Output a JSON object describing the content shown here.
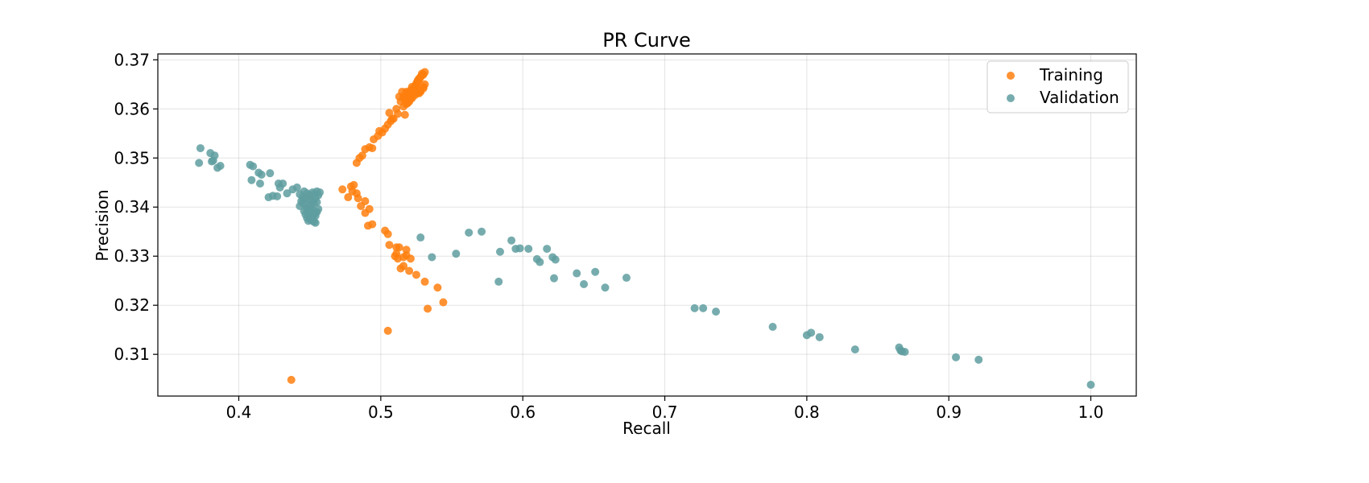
{
  "chart_data": {
    "type": "scatter",
    "title": "PR Curve",
    "xlabel": "Recall",
    "ylabel": "Precision",
    "xlim": [
      0.343,
      1.032
    ],
    "ylim": [
      0.3015,
      0.3712
    ],
    "x_ticks": [
      0.4,
      0.5,
      0.6,
      0.7,
      0.8,
      0.9,
      1.0
    ],
    "x_tick_labels": [
      "0.4",
      "0.5",
      "0.6",
      "0.7",
      "0.8",
      "0.9",
      "1.0"
    ],
    "y_ticks": [
      0.31,
      0.32,
      0.33,
      0.34,
      0.35,
      0.36,
      0.37
    ],
    "y_tick_labels": [
      "0.31",
      "0.32",
      "0.33",
      "0.34",
      "0.35",
      "0.36",
      "0.37"
    ],
    "grid": true,
    "legend": "top-right",
    "series": [
      {
        "name": "Training",
        "color": "#ff7f0e",
        "x": [
          0.516,
          0.518,
          0.52,
          0.522,
          0.524,
          0.526,
          0.528,
          0.53,
          0.531,
          0.519,
          0.521,
          0.523,
          0.525,
          0.527,
          0.529,
          0.517,
          0.519,
          0.521,
          0.523,
          0.525,
          0.527,
          0.529,
          0.531,
          0.514,
          0.516,
          0.518,
          0.52,
          0.522,
          0.524,
          0.526,
          0.528,
          0.53,
          0.518,
          0.52,
          0.522,
          0.524,
          0.526,
          0.528,
          0.53,
          0.516,
          0.519,
          0.521,
          0.525,
          0.527,
          0.511,
          0.513,
          0.515,
          0.517,
          0.506,
          0.508,
          0.512,
          0.505,
          0.507,
          0.509,
          0.503,
          0.501,
          0.498,
          0.495,
          0.499,
          0.492,
          0.489,
          0.494,
          0.487,
          0.485,
          0.483,
          0.473,
          0.479,
          0.481,
          0.477,
          0.48,
          0.483,
          0.484,
          0.489,
          0.486,
          0.492,
          0.489,
          0.494,
          0.491,
          0.503,
          0.505,
          0.506,
          0.511,
          0.513,
          0.511,
          0.518,
          0.51,
          0.512,
          0.516,
          0.518,
          0.521,
          0.514,
          0.516,
          0.52,
          0.525,
          0.531,
          0.54,
          0.544,
          0.533,
          0.505,
          0.437
        ],
        "y": [
          0.3625,
          0.3635,
          0.363,
          0.364,
          0.3645,
          0.3655,
          0.3665,
          0.367,
          0.3675,
          0.362,
          0.3628,
          0.3635,
          0.3648,
          0.366,
          0.3672,
          0.3618,
          0.3625,
          0.3638,
          0.3642,
          0.3652,
          0.3662,
          0.3668,
          0.365,
          0.3615,
          0.3622,
          0.3632,
          0.3625,
          0.3645,
          0.364,
          0.3658,
          0.3635,
          0.3645,
          0.361,
          0.3615,
          0.3622,
          0.3628,
          0.3632,
          0.3638,
          0.3642,
          0.3605,
          0.3612,
          0.362,
          0.3648,
          0.3632,
          0.36,
          0.3625,
          0.3635,
          0.3588,
          0.3592,
          0.358,
          0.359,
          0.3568,
          0.3575,
          0.358,
          0.356,
          0.3552,
          0.3545,
          0.3538,
          0.3555,
          0.3522,
          0.3518,
          0.352,
          0.3505,
          0.35,
          0.349,
          0.3436,
          0.3442,
          0.3445,
          0.342,
          0.3432,
          0.3428,
          0.3418,
          0.3412,
          0.3402,
          0.3396,
          0.3388,
          0.3365,
          0.3362,
          0.3352,
          0.3345,
          0.3323,
          0.3318,
          0.3318,
          0.3305,
          0.3313,
          0.33,
          0.3295,
          0.3298,
          0.3302,
          0.3295,
          0.3275,
          0.328,
          0.327,
          0.3262,
          0.3248,
          0.3236,
          0.3206,
          0.3193,
          0.3148,
          0.3048
        ]
      },
      {
        "name": "Validation",
        "color": "#5f9ea0",
        "x": [
          0.373,
          0.372,
          0.38,
          0.381,
          0.383,
          0.382,
          0.385,
          0.387,
          0.408,
          0.41,
          0.409,
          0.414,
          0.416,
          0.415,
          0.422,
          0.424,
          0.421,
          0.428,
          0.429,
          0.431,
          0.427,
          0.434,
          0.438,
          0.441,
          0.443,
          0.445,
          0.446,
          0.448,
          0.45,
          0.452,
          0.453,
          0.455,
          0.457,
          0.444,
          0.446,
          0.448,
          0.45,
          0.452,
          0.454,
          0.456,
          0.443,
          0.445,
          0.447,
          0.449,
          0.451,
          0.453,
          0.455,
          0.446,
          0.448,
          0.45,
          0.452,
          0.454,
          0.456,
          0.447,
          0.449,
          0.451,
          0.453,
          0.455,
          0.448,
          0.45,
          0.452,
          0.454,
          0.449,
          0.451,
          0.453,
          0.45,
          0.452,
          0.454,
          0.451,
          0.453,
          0.528,
          0.536,
          0.553,
          0.562,
          0.571,
          0.584,
          0.583,
          0.592,
          0.595,
          0.598,
          0.604,
          0.61,
          0.612,
          0.617,
          0.621,
          0.623,
          0.622,
          0.638,
          0.643,
          0.651,
          0.658,
          0.673,
          0.721,
          0.727,
          0.736,
          0.776,
          0.8,
          0.803,
          0.809,
          0.834,
          0.865,
          0.866,
          0.867,
          0.869,
          0.905,
          0.921,
          1.0
        ],
        "y": [
          0.352,
          0.349,
          0.351,
          0.3493,
          0.3505,
          0.3495,
          0.348,
          0.3484,
          0.3486,
          0.3483,
          0.3455,
          0.347,
          0.3466,
          0.3448,
          0.3469,
          0.3423,
          0.342,
          0.3448,
          0.344,
          0.3448,
          0.3422,
          0.3428,
          0.3436,
          0.344,
          0.3426,
          0.342,
          0.3432,
          0.3428,
          0.3425,
          0.343,
          0.3426,
          0.3432,
          0.343,
          0.3412,
          0.3416,
          0.3418,
          0.3415,
          0.3412,
          0.3418,
          0.3424,
          0.3402,
          0.3408,
          0.3405,
          0.34,
          0.3404,
          0.3408,
          0.341,
          0.3392,
          0.3395,
          0.3398,
          0.3394,
          0.339,
          0.3396,
          0.3385,
          0.3388,
          0.3382,
          0.3386,
          0.339,
          0.3378,
          0.338,
          0.3376,
          0.3382,
          0.3372,
          0.3374,
          0.337,
          0.3376,
          0.3372,
          0.3368,
          0.338,
          0.3385,
          0.3338,
          0.3298,
          0.3305,
          0.3348,
          0.335,
          0.3309,
          0.3248,
          0.3332,
          0.3315,
          0.3316,
          0.3315,
          0.3294,
          0.3288,
          0.3315,
          0.3298,
          0.3293,
          0.3255,
          0.3265,
          0.3243,
          0.3268,
          0.3236,
          0.3256,
          0.3194,
          0.3194,
          0.3187,
          0.3156,
          0.3139,
          0.3144,
          0.3135,
          0.311,
          0.3114,
          0.3108,
          0.3106,
          0.3105,
          0.3094,
          0.3089,
          0.3038
        ]
      }
    ]
  }
}
